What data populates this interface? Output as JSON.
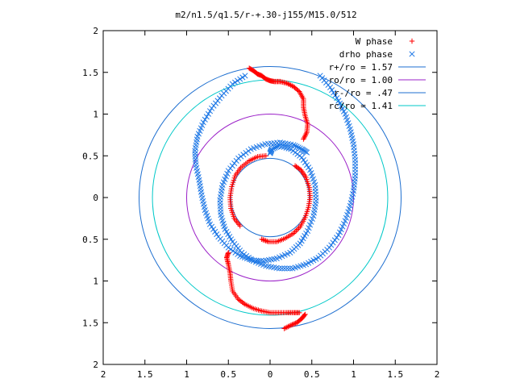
{
  "chart_data": {
    "type": "scatter",
    "title": "m2/n1.5/q1.5/r-+.30-j155/M15.0/512",
    "xlabel": "",
    "ylabel": "",
    "xlim": [
      -2,
      2
    ],
    "ylim": [
      -2,
      2
    ],
    "x_ticks": [
      -2,
      -1.5,
      -1,
      -0.5,
      0,
      0.5,
      1,
      1.5,
      2
    ],
    "y_ticks": [
      -2,
      -1.5,
      -1,
      -0.5,
      0,
      0.5,
      1,
      1.5,
      2
    ],
    "x_tick_labels": [
      "2",
      "1.5",
      "1",
      "0.5",
      "0",
      "0.5",
      "1",
      "1.5",
      "2"
    ],
    "y_tick_labels": [
      "2",
      "1.5",
      "1",
      "0.5",
      "0",
      "0.5",
      "1",
      "1.5",
      "2"
    ],
    "grid": false,
    "legend_position": "top-right",
    "legend": [
      {
        "label": "W phase",
        "kind": "marker",
        "marker": "plus",
        "color": "#ff0000"
      },
      {
        "label": "drho phase",
        "kind": "marker",
        "marker": "cross",
        "color": "#1e78e6"
      },
      {
        "label": "r+/ro = 1.57",
        "kind": "line",
        "color": "#1e6fd0"
      },
      {
        "label": "ro/ro = 1.00",
        "kind": "line",
        "color": "#9b20c8"
      },
      {
        "label": "r-/ro = .47",
        "kind": "line",
        "color": "#1e6fd0"
      },
      {
        "label": "rc/ro = 1.41",
        "kind": "line",
        "color": "#00c8c8"
      }
    ],
    "circles": [
      {
        "r": 1.57,
        "color": "#1e6fd0"
      },
      {
        "r": 1.0,
        "color": "#9b20c8"
      },
      {
        "r": 0.47,
        "color": "#1e6fd0"
      },
      {
        "r": 1.41,
        "color": "#00c8c8"
      }
    ],
    "series": [
      {
        "name": "drho phase",
        "marker": "cross",
        "color": "#1e78e6",
        "segments": [
          [
            [
              -0.3,
              1.46
            ],
            [
              -0.45,
              1.36
            ],
            [
              -0.58,
              1.22
            ],
            [
              -0.7,
              1.07
            ],
            [
              -0.8,
              0.9
            ],
            [
              -0.87,
              0.73
            ],
            [
              -0.9,
              0.56
            ],
            [
              -0.89,
              0.39
            ],
            [
              -0.85,
              0.21
            ],
            [
              -0.82,
              0.03
            ],
            [
              -0.78,
              -0.15
            ],
            [
              -0.72,
              -0.32
            ],
            [
              -0.62,
              -0.47
            ],
            [
              -0.5,
              -0.6
            ],
            [
              -0.36,
              -0.7
            ],
            [
              -0.22,
              -0.75
            ],
            [
              -0.08,
              -0.76
            ],
            [
              0.08,
              -0.73
            ],
            [
              0.24,
              -0.66
            ],
            [
              0.36,
              -0.55
            ],
            [
              0.45,
              -0.4
            ],
            [
              0.52,
              -0.22
            ],
            [
              0.55,
              -0.04
            ],
            [
              0.54,
              0.15
            ],
            [
              0.48,
              0.33
            ],
            [
              0.38,
              0.48
            ],
            [
              0.25,
              0.58
            ],
            [
              0.11,
              0.62
            ],
            [
              0.02,
              0.58
            ],
            [
              0.0,
              0.53
            ]
          ],
          [
            [
              0.6,
              1.46
            ],
            [
              0.72,
              1.32
            ],
            [
              0.82,
              1.16
            ],
            [
              0.9,
              1.0
            ],
            [
              0.96,
              0.82
            ],
            [
              1.0,
              0.64
            ],
            [
              1.02,
              0.45
            ],
            [
              1.02,
              0.26
            ],
            [
              1.0,
              0.08
            ],
            [
              0.96,
              -0.1
            ],
            [
              0.9,
              -0.28
            ],
            [
              0.82,
              -0.45
            ],
            [
              0.71,
              -0.6
            ],
            [
              0.58,
              -0.72
            ],
            [
              0.43,
              -0.8
            ],
            [
              0.27,
              -0.85
            ],
            [
              0.11,
              -0.85
            ],
            [
              -0.05,
              -0.82
            ],
            [
              -0.2,
              -0.76
            ],
            [
              -0.34,
              -0.66
            ],
            [
              -0.45,
              -0.53
            ],
            [
              -0.54,
              -0.38
            ],
            [
              -0.59,
              -0.21
            ],
            [
              -0.6,
              -0.03
            ],
            [
              -0.57,
              0.15
            ],
            [
              -0.5,
              0.32
            ],
            [
              -0.38,
              0.47
            ],
            [
              -0.23,
              0.58
            ],
            [
              -0.06,
              0.64
            ],
            [
              0.12,
              0.66
            ],
            [
              0.28,
              0.63
            ],
            [
              0.38,
              0.58
            ],
            [
              0.44,
              0.54
            ]
          ]
        ]
      },
      {
        "name": "W phase",
        "marker": "plus",
        "color": "#ff0000",
        "segments": [
          [
            [
              -0.25,
              1.55
            ],
            [
              -0.2,
              1.52
            ],
            [
              -0.15,
              1.48
            ],
            [
              -0.1,
              1.46
            ],
            [
              -0.05,
              1.42
            ],
            [
              0.0,
              1.4
            ],
            [
              0.05,
              1.39
            ],
            [
              0.12,
              1.39
            ],
            [
              0.2,
              1.37
            ],
            [
              0.28,
              1.33
            ],
            [
              0.35,
              1.27
            ],
            [
              0.4,
              1.18
            ],
            [
              0.4,
              1.08
            ],
            [
              0.42,
              0.98
            ],
            [
              0.45,
              0.88
            ],
            [
              0.44,
              0.78
            ],
            [
              0.4,
              0.7
            ]
          ],
          [
            [
              0.42,
              -1.4
            ],
            [
              0.38,
              -1.45
            ],
            [
              0.32,
              -1.5
            ],
            [
              0.25,
              -1.53
            ],
            [
              0.17,
              -1.57
            ]
          ],
          [
            [
              0.35,
              -1.38
            ],
            [
              0.28,
              -1.38
            ],
            [
              0.2,
              -1.38
            ],
            [
              0.1,
              -1.38
            ],
            [
              0.0,
              -1.38
            ],
            [
              -0.1,
              -1.36
            ],
            [
              -0.2,
              -1.33
            ],
            [
              -0.3,
              -1.28
            ],
            [
              -0.38,
              -1.22
            ],
            [
              -0.45,
              -1.12
            ],
            [
              -0.47,
              -1.0
            ],
            [
              -0.48,
              -0.9
            ],
            [
              -0.5,
              -0.8
            ],
            [
              -0.52,
              -0.72
            ],
            [
              -0.5,
              -0.66
            ]
          ],
          [
            [
              -0.05,
              0.5
            ],
            [
              -0.15,
              0.49
            ],
            [
              -0.25,
              0.44
            ],
            [
              -0.35,
              0.36
            ],
            [
              -0.42,
              0.26
            ],
            [
              -0.46,
              0.13
            ],
            [
              -0.48,
              0.0
            ],
            [
              -0.47,
              -0.13
            ],
            [
              -0.43,
              -0.25
            ],
            [
              -0.36,
              -0.34
            ]
          ],
          [
            [
              -0.1,
              -0.5
            ],
            [
              -0.02,
              -0.53
            ],
            [
              0.08,
              -0.53
            ],
            [
              0.18,
              -0.49
            ],
            [
              0.28,
              -0.43
            ],
            [
              0.36,
              -0.35
            ],
            [
              0.42,
              -0.24
            ],
            [
              0.46,
              -0.12
            ],
            [
              0.48,
              0.0
            ],
            [
              0.47,
              0.12
            ],
            [
              0.43,
              0.24
            ],
            [
              0.37,
              0.33
            ],
            [
              0.3,
              0.38
            ]
          ]
        ]
      }
    ]
  }
}
